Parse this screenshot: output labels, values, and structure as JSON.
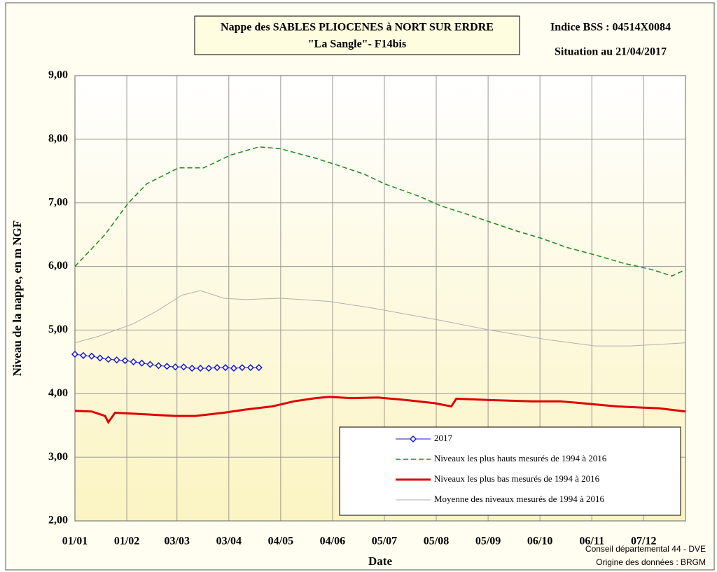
{
  "chart_data": {
    "type": "line",
    "title": "Nappe des SABLES PLIOCENES à NORT SUR ERDRE",
    "subtitle": "\"La Sangle\"-  F14bis",
    "annotations": [
      "Indice BSS : 04514X0084",
      "Situation au 21/04/2017",
      "Conseil départemental 44 - DVE",
      "Origine des données : BRGM"
    ],
    "x_label": "Date",
    "y_label": "Niveau de la nappe, en m NGF",
    "xlim": [
      0,
      365
    ],
    "ylim": [
      2,
      9
    ],
    "xticks": [
      {
        "value": 0,
        "label": "01/01"
      },
      {
        "value": 31,
        "label": "01/02"
      },
      {
        "value": 61,
        "label": "03/03"
      },
      {
        "value": 92,
        "label": "03/04"
      },
      {
        "value": 123,
        "label": "04/05"
      },
      {
        "value": 154,
        "label": "04/06"
      },
      {
        "value": 185,
        "label": "05/07"
      },
      {
        "value": 216,
        "label": "05/08"
      },
      {
        "value": 247,
        "label": "05/09"
      },
      {
        "value": 278,
        "label": "06/10"
      },
      {
        "value": 309,
        "label": "06/11"
      },
      {
        "value": 340,
        "label": "07/12"
      }
    ],
    "yticks": [
      {
        "value": 2,
        "label": "2,00"
      },
      {
        "value": 3,
        "label": "3,00"
      },
      {
        "value": 4,
        "label": "4,00"
      },
      {
        "value": 5,
        "label": "5,00"
      },
      {
        "value": 6,
        "label": "6,00"
      },
      {
        "value": 7,
        "label": "7,00"
      },
      {
        "value": 8,
        "label": "8,00"
      },
      {
        "value": 9,
        "label": "9,00"
      }
    ],
    "grid": true,
    "series": [
      {
        "name": "2017",
        "color": "#1a1acc",
        "style": "solid",
        "marker": "diamond",
        "x": [
          0,
          5,
          10,
          15,
          20,
          25,
          30,
          35,
          40,
          45,
          50,
          55,
          60,
          65,
          70,
          75,
          80,
          85,
          90,
          95,
          100,
          105,
          110
        ],
        "values": [
          4.62,
          4.6,
          4.59,
          4.56,
          4.54,
          4.53,
          4.52,
          4.5,
          4.48,
          4.46,
          4.44,
          4.43,
          4.42,
          4.42,
          4.4,
          4.4,
          4.4,
          4.41,
          4.41,
          4.4,
          4.41,
          4.41,
          4.41
        ]
      },
      {
        "name": "Niveaux les plus hauts mesurés de 1994 à 2016",
        "color": "#1a8c1a",
        "style": "dashed",
        "x": [
          0,
          18,
          32,
          43,
          62,
          77,
          93,
          110,
          123,
          144,
          156,
          173,
          185,
          206,
          219,
          231,
          248,
          265,
          278,
          294,
          311,
          328,
          345,
          357,
          365
        ],
        "values": [
          6.0,
          6.5,
          7.0,
          7.3,
          7.55,
          7.55,
          7.75,
          7.88,
          7.85,
          7.7,
          7.6,
          7.45,
          7.3,
          7.1,
          6.95,
          6.85,
          6.7,
          6.55,
          6.45,
          6.3,
          6.18,
          6.05,
          5.95,
          5.85,
          5.95
        ]
      },
      {
        "name": "Niveaux les plus bas mesurés de 1994 à 2016",
        "color": "#e00000",
        "style": "solid",
        "x": [
          0,
          10,
          18,
          20,
          24,
          39,
          60,
          72,
          89,
          102,
          118,
          131,
          144,
          152,
          165,
          181,
          198,
          215,
          225,
          228,
          248,
          273,
          290,
          303,
          324,
          340,
          349,
          365
        ],
        "values": [
          3.73,
          3.72,
          3.65,
          3.55,
          3.7,
          3.68,
          3.65,
          3.65,
          3.7,
          3.75,
          3.8,
          3.88,
          3.93,
          3.95,
          3.93,
          3.94,
          3.9,
          3.85,
          3.8,
          3.92,
          3.9,
          3.88,
          3.88,
          3.85,
          3.8,
          3.78,
          3.77,
          3.72
        ]
      },
      {
        "name": "Moyenne des niveaux mesurés de 1994 à 2016",
        "color": "#b0b0b0",
        "style": "thin",
        "x": [
          0,
          14,
          35,
          49,
          64,
          75,
          89,
          102,
          123,
          152,
          177,
          198,
          219,
          248,
          282,
          311,
          332,
          353,
          365
        ],
        "values": [
          4.8,
          4.9,
          5.1,
          5.3,
          5.55,
          5.62,
          5.5,
          5.48,
          5.5,
          5.45,
          5.35,
          5.25,
          5.15,
          5.0,
          4.85,
          4.75,
          4.75,
          4.78,
          4.8
        ]
      }
    ]
  }
}
